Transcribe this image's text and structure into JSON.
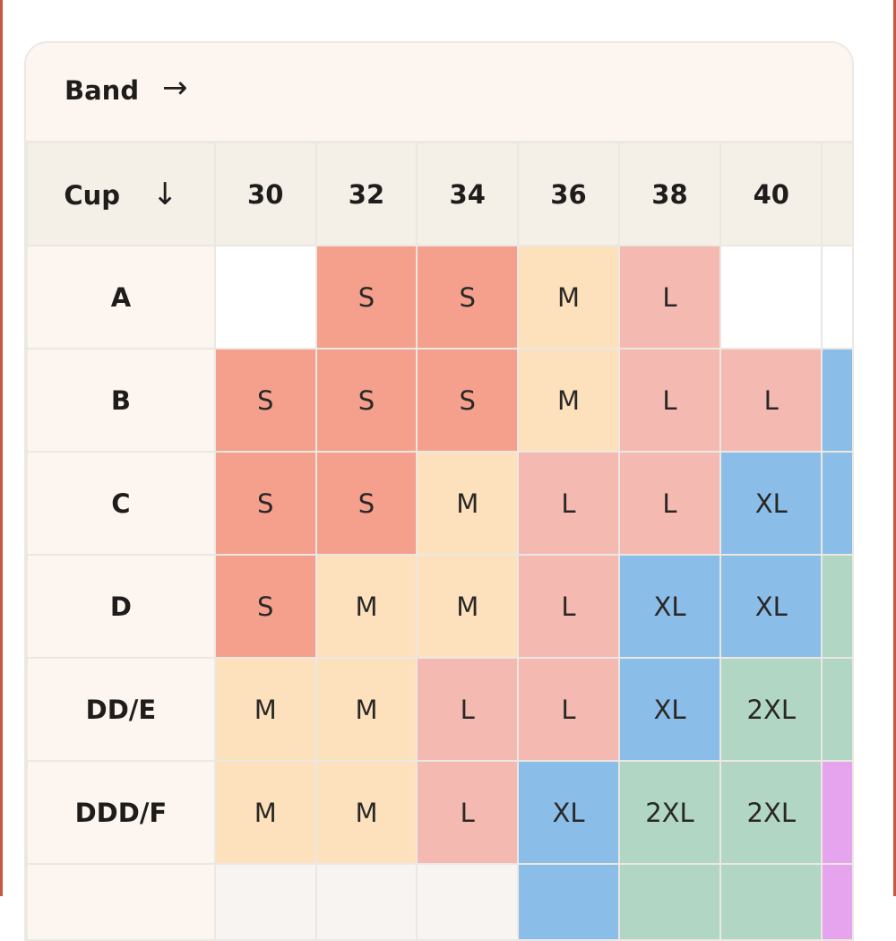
{
  "header": {
    "band_label": "Band",
    "band_arrow": "→"
  },
  "table": {
    "cup_label": "Cup",
    "cup_arrow": "↓",
    "bands": [
      "30",
      "32",
      "34",
      "36",
      "38",
      "40",
      ""
    ],
    "rows": [
      {
        "cup": "A",
        "cells": [
          "",
          "S",
          "S",
          "M",
          "L",
          "",
          ""
        ]
      },
      {
        "cup": "B",
        "cells": [
          "S",
          "S",
          "S",
          "M",
          "L",
          "L",
          ""
        ]
      },
      {
        "cup": "C",
        "cells": [
          "S",
          "S",
          "M",
          "L",
          "L",
          "XL",
          ""
        ]
      },
      {
        "cup": "D",
        "cells": [
          "S",
          "M",
          "M",
          "L",
          "XL",
          "XL",
          ""
        ]
      },
      {
        "cup": "DD/E",
        "cells": [
          "M",
          "M",
          "L",
          "L",
          "XL",
          "2XL",
          ""
        ]
      },
      {
        "cup": "DDD/F",
        "cells": [
          "M",
          "M",
          "L",
          "XL",
          "2XL",
          "2XL",
          ""
        ]
      },
      {
        "cup": "",
        "cells": [
          "",
          "",
          "",
          "",
          "",
          "",
          ""
        ]
      }
    ],
    "last_column_colors": [
      "none",
      "XL",
      "XL",
      "2XL",
      "2XL",
      "3XL",
      "none"
    ],
    "last_row_colors": [
      "none",
      "none",
      "none",
      "XL",
      "2XL",
      "2XL",
      "3XL"
    ]
  },
  "colors": {
    "S": "#f5a08d",
    "M": "#fde1bd",
    "L": "#f4b9b0",
    "XL": "#8bbde9",
    "2XL": "#b1d6c3",
    "3XL": "#e6a4ee",
    "frame_border": "#c9573f",
    "header_bg": "#fdf6f0",
    "column_header_bg": "#f4efe7"
  }
}
